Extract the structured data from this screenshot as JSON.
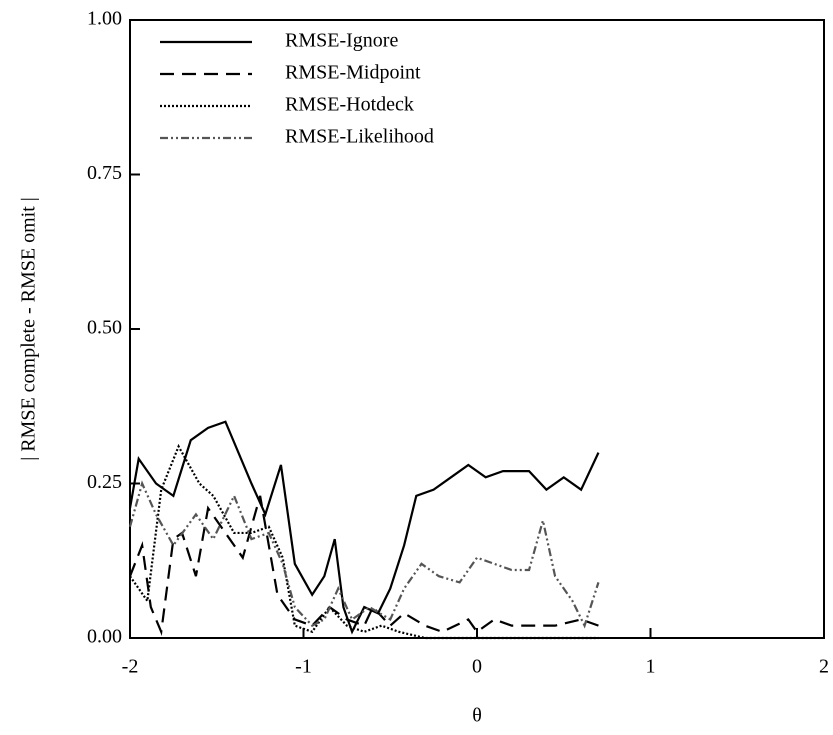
{
  "chart_data": {
    "type": "line",
    "xlabel": "θ",
    "ylabel": "| RMSE complete - RMSE omit |",
    "xlim": [
      -2,
      2
    ],
    "ylim": [
      0,
      1
    ],
    "xticks": [
      -2,
      -1,
      0,
      1,
      2
    ],
    "yticks": [
      {
        "value": 0,
        "label": "0.00"
      },
      {
        "value": 0.25,
        "label": "0.25"
      },
      {
        "value": 0.5,
        "label": "0.50"
      },
      {
        "value": 0.75,
        "label": "0.75"
      },
      {
        "value": 1,
        "label": "1.00"
      }
    ],
    "legend": "upper left",
    "series": [
      {
        "name": "RMSE-Ignore",
        "color": "#000000",
        "dash": "none",
        "x": [
          -2.0,
          -1.95,
          -1.85,
          -1.75,
          -1.65,
          -1.55,
          -1.45,
          -1.3,
          -1.22,
          -1.13,
          -1.05,
          -0.95,
          -0.88,
          -0.82,
          -0.77,
          -0.72,
          -0.65,
          -0.57,
          -0.5,
          -0.42,
          -0.35,
          -0.25,
          -0.15,
          -0.05,
          0.05,
          0.15,
          0.3,
          0.4,
          0.5,
          0.6,
          0.7
        ],
        "values": [
          0.21,
          0.29,
          0.25,
          0.23,
          0.32,
          0.34,
          0.35,
          0.25,
          0.2,
          0.28,
          0.12,
          0.07,
          0.1,
          0.16,
          0.05,
          0.01,
          0.05,
          0.04,
          0.08,
          0.15,
          0.23,
          0.24,
          0.26,
          0.28,
          0.26,
          0.27,
          0.27,
          0.24,
          0.26,
          0.24,
          0.3
        ]
      },
      {
        "name": "RMSE-Midpoint",
        "color": "#000000",
        "dash": "14,8",
        "x": [
          -2.0,
          -1.93,
          -1.88,
          -1.82,
          -1.75,
          -1.7,
          -1.62,
          -1.55,
          -1.45,
          -1.35,
          -1.25,
          -1.15,
          -1.05,
          -0.95,
          -0.85,
          -0.75,
          -0.65,
          -0.6,
          -0.5,
          -0.42,
          -0.3,
          -0.2,
          -0.05,
          0.0,
          0.1,
          0.2,
          0.3,
          0.45,
          0.6,
          0.7
        ],
        "values": [
          0.1,
          0.15,
          0.05,
          0.01,
          0.16,
          0.17,
          0.1,
          0.21,
          0.17,
          0.13,
          0.23,
          0.07,
          0.03,
          0.02,
          0.05,
          0.03,
          0.02,
          0.05,
          0.02,
          0.04,
          0.02,
          0.01,
          0.03,
          0.01,
          0.03,
          0.02,
          0.02,
          0.02,
          0.03,
          0.02
        ]
      },
      {
        "name": "RMSE-Hotdeck",
        "color": "#000000",
        "dash": "2,2",
        "x": [
          -2.0,
          -1.9,
          -1.82,
          -1.72,
          -1.6,
          -1.52,
          -1.4,
          -1.3,
          -1.2,
          -1.12,
          -1.05,
          -0.95,
          -0.85,
          -0.75,
          -0.65,
          -0.55,
          -0.45,
          -0.3,
          0.0,
          0.7
        ],
        "values": [
          0.1,
          0.06,
          0.24,
          0.31,
          0.25,
          0.23,
          0.17,
          0.17,
          0.18,
          0.13,
          0.02,
          0.01,
          0.05,
          0.02,
          0.01,
          0.02,
          0.01,
          0.0,
          0.0,
          0.0
        ]
      },
      {
        "name": "RMSE-Likelihood",
        "color": "#555555",
        "dash": "8,3,2,3,2,3",
        "x": [
          -2.0,
          -1.93,
          -1.85,
          -1.75,
          -1.62,
          -1.52,
          -1.4,
          -1.3,
          -1.2,
          -1.12,
          -1.05,
          -0.95,
          -0.88,
          -0.8,
          -0.72,
          -0.62,
          -0.5,
          -0.42,
          -0.32,
          -0.22,
          -0.1,
          0.0,
          0.1,
          0.2,
          0.3,
          0.38,
          0.45,
          0.55,
          0.62,
          0.7
        ],
        "values": [
          0.18,
          0.25,
          0.2,
          0.15,
          0.2,
          0.16,
          0.23,
          0.16,
          0.17,
          0.12,
          0.05,
          0.02,
          0.03,
          0.08,
          0.03,
          0.05,
          0.03,
          0.08,
          0.12,
          0.1,
          0.09,
          0.13,
          0.12,
          0.11,
          0.11,
          0.19,
          0.1,
          0.06,
          0.02,
          0.09
        ]
      }
    ]
  }
}
